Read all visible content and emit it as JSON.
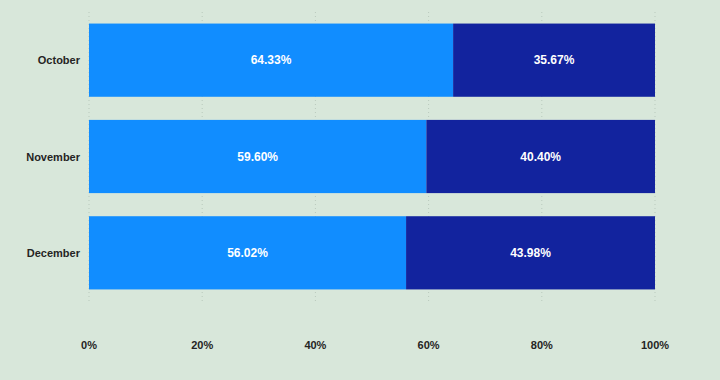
{
  "chart_data": {
    "type": "bar",
    "orientation": "horizontal",
    "stacked": true,
    "data_labels": true,
    "grid": true,
    "categories": [
      "October",
      "November",
      "December"
    ],
    "series": [
      {
        "color": "#118dff",
        "values": [
          64.33,
          59.6,
          56.02
        ],
        "value_labels": [
          "64.33%",
          "59.60%",
          "56.02%"
        ]
      },
      {
        "color": "#12239e",
        "values": [
          35.67,
          40.4,
          43.98
        ],
        "value_labels": [
          "35.67%",
          "40.40%",
          "43.98%"
        ]
      }
    ],
    "xlim": [
      0,
      100
    ],
    "xticks": [
      {
        "value": 0,
        "label": "0%"
      },
      {
        "value": 20,
        "label": "20%"
      },
      {
        "value": 40,
        "label": "40%"
      },
      {
        "value": 60,
        "label": "60%"
      },
      {
        "value": 80,
        "label": "80%"
      },
      {
        "value": 100,
        "label": "100%"
      }
    ]
  }
}
